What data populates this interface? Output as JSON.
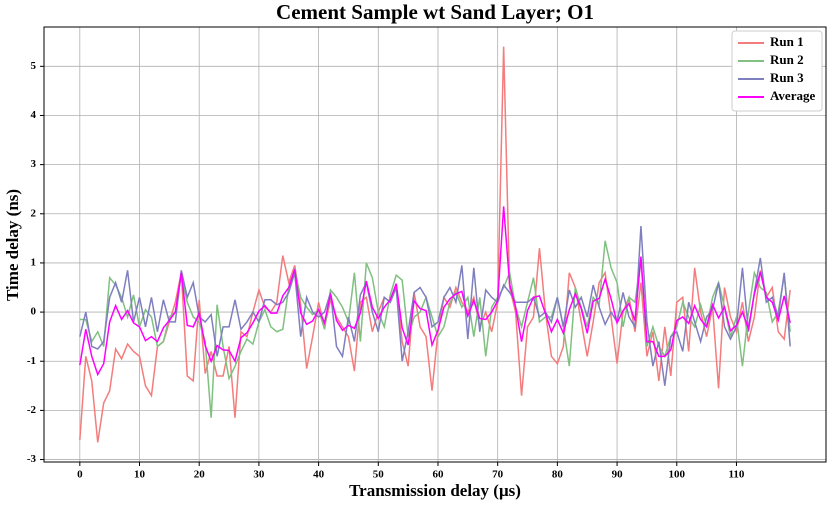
{
  "chart_data": {
    "type": "line",
    "title": "Cement Sample wt Sand Layer; O1",
    "xlabel": "Transmission delay (μs)",
    "ylabel": "Time delay (ns)",
    "x": [
      0,
      1,
      2,
      3,
      4,
      5,
      6,
      7,
      8,
      9,
      10,
      11,
      12,
      13,
      14,
      15,
      16,
      17,
      18,
      19,
      20,
      21,
      22,
      23,
      24,
      25,
      26,
      27,
      28,
      29,
      30,
      31,
      32,
      33,
      34,
      35,
      36,
      37,
      38,
      39,
      40,
      41,
      42,
      43,
      44,
      45,
      46,
      47,
      48,
      49,
      50,
      51,
      52,
      53,
      54,
      55,
      56,
      57,
      58,
      59,
      60,
      61,
      62,
      63,
      64,
      65,
      66,
      67,
      68,
      69,
      70,
      71,
      72,
      73,
      74,
      75,
      76,
      77,
      78,
      79,
      80,
      81,
      82,
      83,
      84,
      85,
      86,
      87,
      88,
      89,
      90,
      91,
      92,
      93,
      94,
      95,
      96,
      97,
      98,
      99,
      100,
      101,
      102,
      103,
      104,
      105,
      106,
      107,
      108,
      109,
      110,
      111,
      112,
      113,
      114,
      115,
      116,
      117,
      118,
      119
    ],
    "series": [
      {
        "name": "Run 1",
        "color": "#f47c7c",
        "values": [
          -2.6,
          -0.9,
          -1.4,
          -2.65,
          -1.85,
          -1.6,
          -0.75,
          -0.95,
          -0.65,
          -0.8,
          -0.9,
          -1.5,
          -1.7,
          -0.7,
          -0.6,
          -0.2,
          0.2,
          0.8,
          -1.3,
          -1.4,
          0.25,
          -1.25,
          -0.8,
          -1.3,
          -1.3,
          -0.7,
          -2.15,
          -0.4,
          -0.5,
          0.0,
          0.45,
          0.1,
          0.0,
          0.2,
          1.15,
          0.6,
          0.95,
          0.15,
          -1.15,
          -0.5,
          0.2,
          -0.3,
          0.25,
          -0.1,
          -0.3,
          -0.5,
          -1.2,
          0.2,
          0.3,
          -0.4,
          0.0,
          0.3,
          0.2,
          0.5,
          -0.6,
          -1.1,
          0.4,
          -0.3,
          -0.5,
          -1.6,
          -0.4,
          0.3,
          0.1,
          0.5,
          0.2,
          0.0,
          0.3,
          -0.3,
          0.0,
          -0.4,
          0.2,
          5.4,
          0.5,
          0.0,
          -1.7,
          -0.3,
          -0.1,
          1.3,
          0.0,
          -0.9,
          -1.05,
          -0.7,
          0.8,
          0.5,
          -0.2,
          -0.9,
          -0.2,
          0.6,
          0.8,
          -0.1,
          -1.05,
          0.0,
          0.3,
          -0.4,
          0.6,
          -0.9,
          -0.4,
          -1.4,
          -0.3,
          -1.3,
          0.2,
          0.3,
          -0.8,
          0.9,
          0.0,
          -0.5,
          0.1,
          -1.55,
          0.5,
          -0.1,
          -0.4,
          0.2,
          -0.6,
          -0.1,
          0.85,
          0.3,
          0.5,
          -0.4,
          -0.55,
          0.45
        ]
      },
      {
        "name": "Run 2",
        "color": "#80c080",
        "values": [
          -0.15,
          -0.15,
          -0.6,
          -0.4,
          -0.7,
          0.7,
          0.55,
          0.3,
          -0.1,
          0.35,
          -0.3,
          0.05,
          -0.1,
          -0.7,
          -0.6,
          -0.1,
          0.0,
          0.75,
          0.2,
          -0.1,
          -0.2,
          -0.6,
          -2.15,
          0.15,
          -0.7,
          -1.35,
          -1.1,
          -0.8,
          -0.55,
          -0.65,
          -0.2,
          0.05,
          -0.3,
          -0.4,
          -0.35,
          0.5,
          0.85,
          0.3,
          0.1,
          -0.05,
          0.05,
          -0.35,
          0.45,
          0.3,
          0.1,
          -0.2,
          0.8,
          -0.6,
          1.0,
          0.7,
          0.0,
          -0.3,
          0.35,
          0.75,
          0.65,
          -0.5,
          -0.1,
          0.0,
          0.3,
          -0.1,
          -0.5,
          -0.3,
          0.2,
          0.4,
          0.1,
          0.3,
          -0.5,
          0.3,
          -0.9,
          0.1,
          0.3,
          0.5,
          0.8,
          0.1,
          -0.3,
          0.2,
          0.7,
          -0.2,
          -0.1,
          -0.1,
          0.3,
          -0.3,
          -1.1,
          0.5,
          0.1,
          -0.3,
          0.3,
          0.15,
          1.45,
          0.9,
          0.6,
          -0.3,
          0.3,
          0.2,
          1.05,
          -0.7,
          -0.3,
          -0.7,
          -0.9,
          -0.5,
          -0.3,
          0.2,
          -0.1,
          -0.3,
          0.15,
          -0.3,
          0.3,
          0.6,
          0.1,
          -0.5,
          -0.1,
          -1.1,
          0.0,
          0.8,
          0.5,
          0.4,
          -0.2,
          0.0,
          0.75,
          -0.4
        ]
      },
      {
        "name": "Run 3",
        "color": "#7f7fbf",
        "values": [
          -0.5,
          0.0,
          -0.7,
          -0.75,
          -0.6,
          0.3,
          0.6,
          0.2,
          0.85,
          -0.2,
          0.3,
          -0.3,
          0.3,
          -0.4,
          0.25,
          -0.2,
          -0.2,
          0.85,
          0.3,
          0.6,
          -0.1,
          -0.2,
          -0.05,
          -0.9,
          -0.3,
          -0.3,
          0.25,
          -0.35,
          -0.2,
          0.0,
          -0.2,
          0.25,
          0.25,
          0.15,
          0.2,
          0.4,
          0.8,
          -0.5,
          0.3,
          0.0,
          -0.1,
          0.0,
          0.4,
          -0.7,
          -0.9,
          -0.1,
          -0.6,
          0.35,
          0.6,
          0.0,
          -0.4,
          0.3,
          0.2,
          0.5,
          -1.0,
          -0.4,
          0.4,
          0.5,
          0.3,
          -0.3,
          -0.2,
          0.3,
          0.5,
          0.2,
          0.95,
          -0.55,
          0.9,
          -0.4,
          0.45,
          0.3,
          0.2,
          0.55,
          0.4,
          0.2,
          0.2,
          0.2,
          0.3,
          -0.1,
          0.0,
          -0.2,
          0.3,
          -0.3,
          0.45,
          0.1,
          0.3,
          -0.1,
          0.55,
          0.1,
          -0.25,
          0.0,
          -0.2,
          0.4,
          -0.1,
          -0.3,
          1.75,
          -0.2,
          -1.1,
          -0.6,
          -1.5,
          -0.5,
          -0.4,
          -0.8,
          0.2,
          -0.2,
          -0.6,
          -0.1,
          0.05,
          0.6,
          -0.3,
          -0.55,
          -0.3,
          0.9,
          -0.4,
          0.4,
          1.1,
          0.2,
          0.3,
          -0.1,
          0.8,
          -0.7
        ]
      },
      {
        "name": "Average",
        "color": "#ff00ff",
        "values": [
          -1.08,
          -0.35,
          -0.9,
          -1.27,
          -1.05,
          -0.2,
          0.13,
          -0.15,
          0.03,
          -0.22,
          -0.3,
          -0.58,
          -0.5,
          -0.6,
          -0.32,
          -0.17,
          0.0,
          0.8,
          -0.27,
          -0.3,
          -0.02,
          -0.68,
          -1.0,
          -0.68,
          -0.77,
          -0.78,
          -1.0,
          -0.52,
          -0.42,
          -0.22,
          0.02,
          0.13,
          -0.02,
          -0.02,
          0.33,
          0.5,
          0.87,
          -0.02,
          -0.25,
          -0.18,
          0.05,
          -0.22,
          0.37,
          -0.17,
          -0.37,
          -0.27,
          -0.33,
          -0.02,
          0.63,
          0.1,
          -0.13,
          0.1,
          0.25,
          0.58,
          -0.32,
          -0.67,
          0.23,
          0.07,
          0.03,
          -0.67,
          -0.37,
          0.1,
          0.27,
          0.37,
          0.42,
          -0.08,
          0.23,
          -0.13,
          -0.15,
          0.0,
          0.23,
          2.15,
          0.57,
          0.1,
          -0.6,
          0.03,
          0.3,
          0.33,
          -0.03,
          -0.4,
          -0.15,
          -0.43,
          0.05,
          0.37,
          0.07,
          -0.43,
          0.22,
          0.28,
          0.67,
          0.27,
          -0.22,
          0.03,
          0.17,
          -0.17,
          1.13,
          -0.6,
          -0.6,
          -0.9,
          -0.9,
          -0.77,
          -0.17,
          -0.1,
          -0.23,
          0.13,
          -0.15,
          -0.3,
          0.15,
          -0.12,
          0.1,
          -0.38,
          -0.27,
          0.0,
          -0.33,
          0.37,
          0.82,
          0.3,
          0.2,
          -0.17,
          0.33,
          -0.22
        ]
      }
    ],
    "xlim": [
      -6,
      125
    ],
    "ylim": [
      -3.05,
      5.8
    ],
    "xticks": [
      0,
      10,
      20,
      30,
      40,
      50,
      60,
      70,
      80,
      90,
      100,
      110
    ],
    "yticks": [
      -3,
      -2,
      -1,
      0,
      1,
      2,
      3,
      4,
      5
    ],
    "grid": true,
    "legend": "upper-right"
  }
}
